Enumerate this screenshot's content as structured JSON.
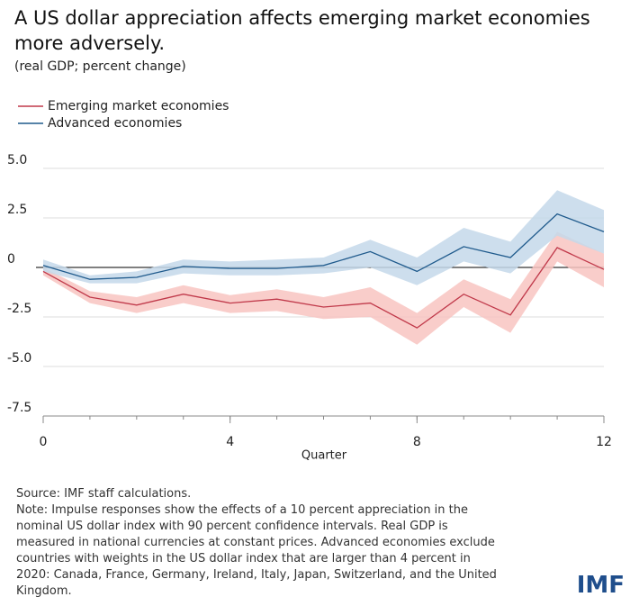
{
  "chart_data": {
    "type": "line",
    "title": "A US dollar appreciation affects emerging market economies more adversely.",
    "subtitle": "(real GDP; percent change)",
    "x_label": "Quarter",
    "x": [
      0,
      1,
      2,
      3,
      4,
      5,
      6,
      7,
      8,
      9,
      10,
      11,
      12
    ],
    "xlim": [
      0,
      12
    ],
    "xticks": [
      0,
      4,
      8,
      12
    ],
    "ylim": [
      -7.5,
      5
    ],
    "yticks": [
      {
        "value": -7.5,
        "label": "-7.5"
      },
      {
        "value": -5,
        "label": "-5.0"
      },
      -2.5,
      0,
      2.5,
      {
        "value": 5,
        "label": "5.0"
      }
    ],
    "grid": true,
    "series": [
      {
        "name": "Emerging market economies",
        "color": "#c0394a",
        "band_color": "#f8c4c1",
        "values": [
          -0.2,
          -1.5,
          -1.9,
          -1.35,
          -1.8,
          -1.6,
          -2.0,
          -1.8,
          -3.05,
          -1.35,
          -2.4,
          1.0,
          -0.1
        ],
        "lower": [
          -0.4,
          -1.8,
          -2.3,
          -1.8,
          -2.3,
          -2.2,
          -2.6,
          -2.5,
          -3.9,
          -2.0,
          -3.3,
          0.3,
          -1.0
        ],
        "upper": [
          0.0,
          -1.2,
          -1.5,
          -0.9,
          -1.4,
          -1.1,
          -1.5,
          -1.0,
          -2.3,
          -0.6,
          -1.6,
          1.8,
          0.7
        ]
      },
      {
        "name": "Advanced economies",
        "color": "#1f5a8c",
        "band_color": "#c4d8ea",
        "values": [
          0.1,
          -0.6,
          -0.5,
          0.05,
          -0.05,
          -0.05,
          0.1,
          0.8,
          -0.2,
          1.05,
          0.5,
          2.7,
          1.8
        ],
        "lower": [
          -0.2,
          -0.8,
          -0.8,
          -0.3,
          -0.4,
          -0.4,
          -0.3,
          0.0,
          -0.9,
          0.3,
          -0.3,
          1.6,
          0.7
        ],
        "upper": [
          0.4,
          -0.4,
          -0.2,
          0.4,
          0.3,
          0.4,
          0.5,
          1.4,
          0.5,
          2.0,
          1.3,
          3.9,
          2.9
        ]
      }
    ],
    "source": "Source: IMF staff calculations.",
    "note": "Note: Impulse responses show the effects of a 10 percent appreciation in the nominal US dollar index with 90 percent confidence intervals. Real GDP is measured in national currencies at constant prices. Advanced economies exclude countries with weights in the US dollar index that are larger than 4 percent in 2020: Canada, France, Germany, Ireland, Italy, Japan, Switzerland, and the United Kingdom.",
    "logo": "IMF"
  }
}
